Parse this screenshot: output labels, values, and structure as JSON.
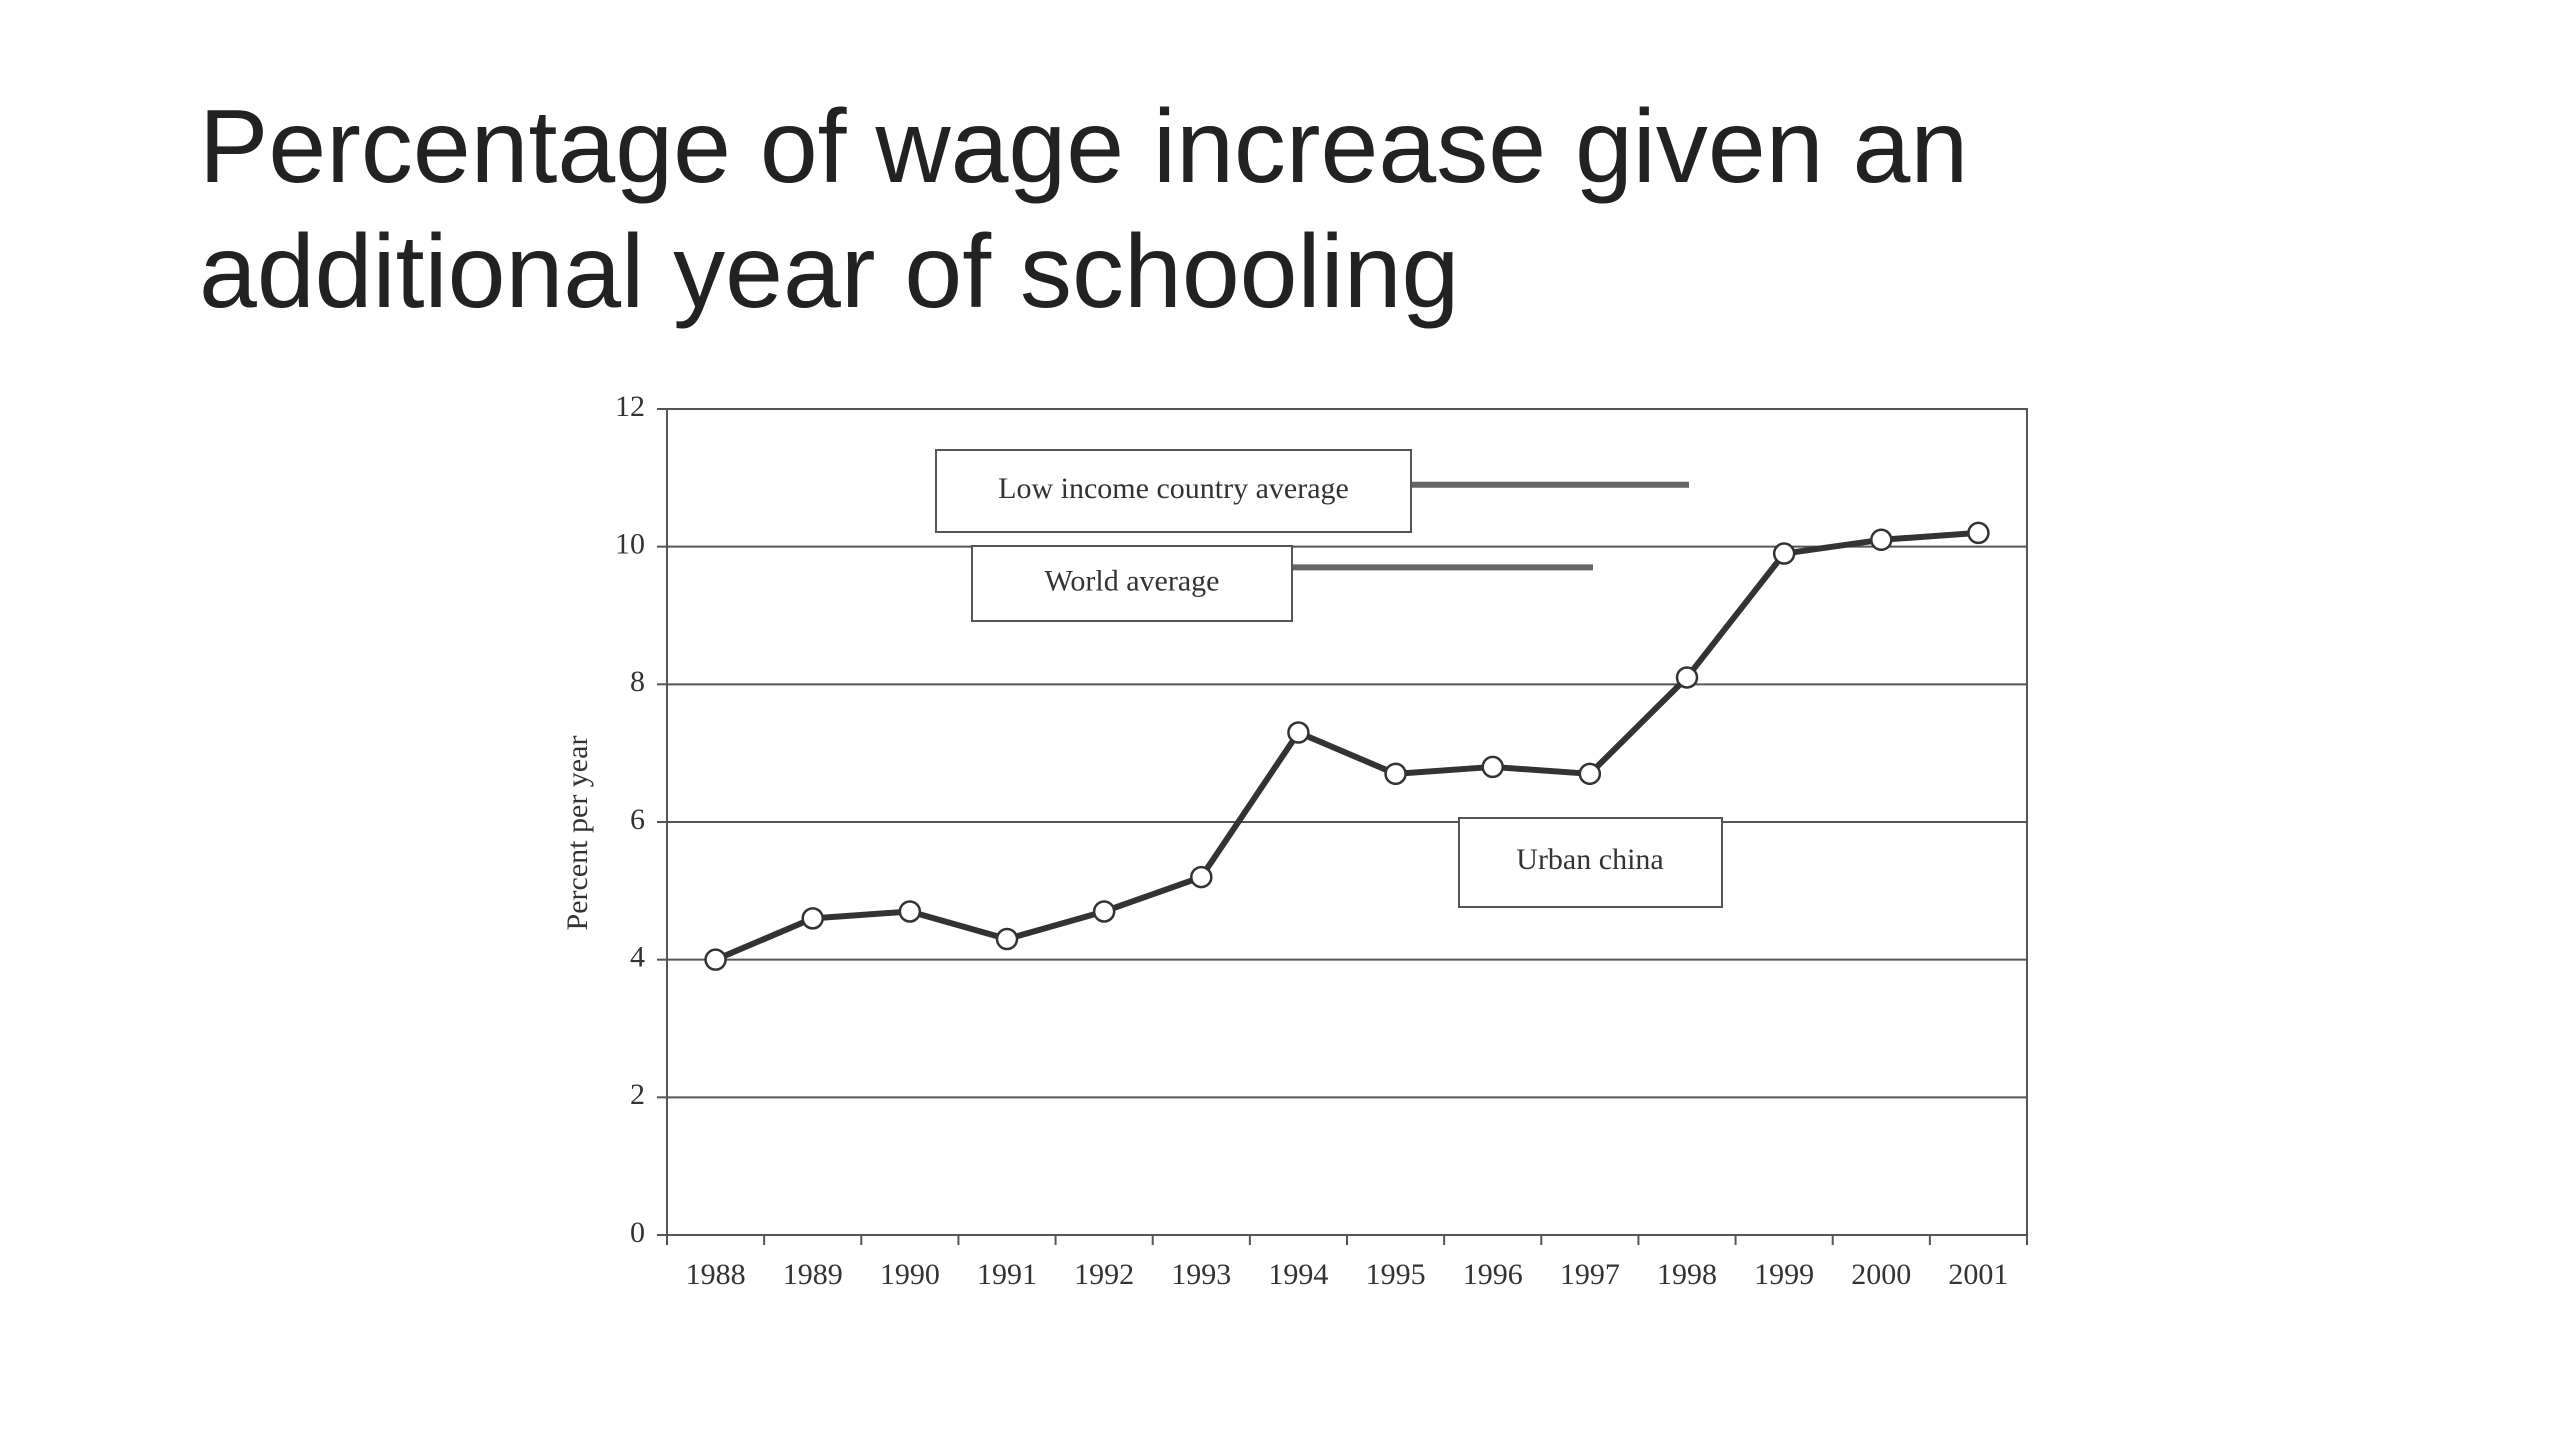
{
  "chart_data": {
    "type": "line",
    "title": "Percentage of wage increase given an additional year of schooling",
    "y_label": "Percent per year",
    "categories": [
      "1988",
      "1989",
      "1990",
      "1991",
      "1992",
      "1993",
      "1994",
      "1995",
      "1996",
      "1997",
      "1998",
      "1999",
      "2000",
      "2001"
    ],
    "series": [
      {
        "name": "Urban china",
        "color": "#333333",
        "values": [
          4.0,
          4.6,
          4.7,
          4.3,
          4.7,
          5.2,
          7.3,
          6.7,
          6.8,
          6.7,
          8.1,
          9.9,
          10.1,
          10.2
        ]
      }
    ],
    "reference_lines": [
      {
        "name": "Low income country average",
        "value": 10.9,
        "color": "#666666"
      },
      {
        "name": "World average",
        "value": 9.7,
        "color": "#666666"
      }
    ],
    "ylim": [
      0,
      12
    ],
    "yticks": [
      0,
      2,
      4,
      6,
      8,
      10,
      12
    ],
    "grid": true
  }
}
